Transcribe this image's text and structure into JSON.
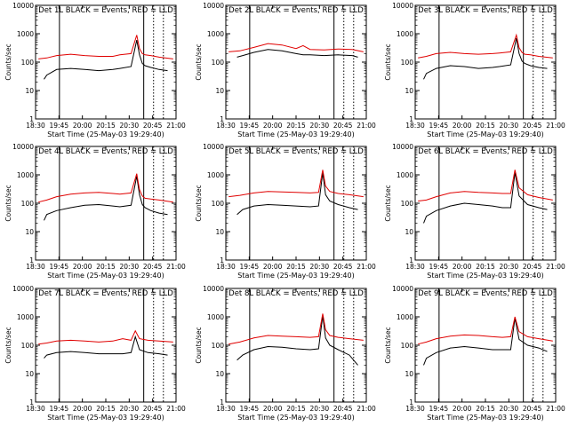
{
  "colors": {
    "events": "#000000",
    "lld": "#e00000",
    "axis": "#000000",
    "background": "#ffffff"
  },
  "common": {
    "x_ticks": [
      "18:30",
      "19:45",
      "20:00",
      "20:15",
      "20:30",
      "20:45",
      "21:00"
    ],
    "y_ticks": [
      "1",
      "10",
      "100",
      "1000",
      "10000"
    ],
    "ylabel": "Counts/sec",
    "xlabel": "Start Time (25-May-03 19:29:40)"
  },
  "chart_data": [
    {
      "type": "line",
      "title": "Det 1L BLACK = Events, RED = LLD",
      "xlabel": "Start Time (25-May-03 19:29:40)",
      "ylabel": "Counts/sec",
      "yscale": "log",
      "ylim": [
        1,
        10000
      ],
      "x_ticks": [
        "18:30",
        "19:45",
        "20:00",
        "20:15",
        "20:30",
        "20:45",
        "21:00"
      ],
      "series": [
        {
          "name": "Events",
          "color": "#000000",
          "x": [
            0.06,
            0.08,
            0.15,
            0.25,
            0.35,
            0.45,
            0.55,
            0.6,
            0.68,
            0.72,
            0.74,
            0.76,
            0.78,
            0.82,
            0.88,
            0.94
          ],
          "y": [
            25,
            35,
            55,
            60,
            55,
            50,
            55,
            60,
            70,
            600,
            180,
            90,
            75,
            65,
            55,
            50
          ]
        },
        {
          "name": "LLD",
          "color": "#e00000",
          "x": [
            0.02,
            0.08,
            0.15,
            0.25,
            0.35,
            0.45,
            0.55,
            0.6,
            0.68,
            0.72,
            0.74,
            0.76,
            0.78,
            0.82,
            0.88,
            0.98
          ],
          "y": [
            130,
            140,
            170,
            190,
            170,
            160,
            160,
            180,
            200,
            900,
            300,
            200,
            180,
            170,
            150,
            130
          ]
        }
      ]
    },
    {
      "type": "line",
      "title": "Det 2L BLACK = Events, RED = LLD",
      "xlabel": "Start Time (25-May-03 19:29:40)",
      "ylabel": "Counts/sec",
      "yscale": "log",
      "ylim": [
        1,
        10000
      ],
      "x_ticks": [
        "18:30",
        "19:45",
        "20:00",
        "20:15",
        "20:30",
        "20:45",
        "21:00"
      ],
      "series": [
        {
          "name": "Events",
          "color": "#000000",
          "x": [
            0.08,
            0.12,
            0.2,
            0.3,
            0.4,
            0.5,
            0.55,
            0.6,
            0.7,
            0.8,
            0.9,
            0.94
          ],
          "y": [
            150,
            170,
            220,
            280,
            250,
            200,
            180,
            180,
            170,
            180,
            170,
            150
          ]
        },
        {
          "name": "LLD",
          "color": "#e00000",
          "x": [
            0.02,
            0.1,
            0.2,
            0.3,
            0.4,
            0.5,
            0.55,
            0.6,
            0.7,
            0.8,
            0.9,
            0.98
          ],
          "y": [
            230,
            250,
            330,
            450,
            400,
            300,
            380,
            280,
            270,
            290,
            280,
            230
          ]
        }
      ]
    },
    {
      "type": "line",
      "title": "Det 3L BLACK = Events, RED = LLD",
      "xlabel": "Start Time (25-May-03 19:29:40)",
      "ylabel": "Counts/sec",
      "yscale": "log",
      "ylim": [
        1,
        10000
      ],
      "x_ticks": [
        "18:30",
        "19:45",
        "20:00",
        "20:15",
        "20:30",
        "20:45",
        "21:00"
      ],
      "series": [
        {
          "name": "Events",
          "color": "#000000",
          "x": [
            0.06,
            0.08,
            0.15,
            0.25,
            0.35,
            0.45,
            0.55,
            0.6,
            0.68,
            0.72,
            0.74,
            0.76,
            0.78,
            0.82,
            0.88,
            0.94
          ],
          "y": [
            25,
            40,
            60,
            75,
            70,
            60,
            65,
            70,
            80,
            700,
            200,
            110,
            90,
            75,
            65,
            60
          ]
        },
        {
          "name": "LLD",
          "color": "#e00000",
          "x": [
            0.02,
            0.08,
            0.15,
            0.25,
            0.35,
            0.45,
            0.55,
            0.6,
            0.68,
            0.72,
            0.74,
            0.76,
            0.78,
            0.82,
            0.88,
            0.98
          ],
          "y": [
            140,
            160,
            200,
            220,
            200,
            190,
            200,
            210,
            230,
            900,
            320,
            220,
            190,
            180,
            160,
            140
          ]
        }
      ]
    },
    {
      "type": "line",
      "title": "Det 4L BLACK = Events, RED = LLD",
      "xlabel": "Start Time (25-May-03 19:29:40)",
      "ylabel": "Counts/sec",
      "yscale": "log",
      "ylim": [
        1,
        10000
      ],
      "x_ticks": [
        "18:30",
        "19:45",
        "20:00",
        "20:15",
        "20:30",
        "20:45",
        "21:00"
      ],
      "series": [
        {
          "name": "Events",
          "color": "#000000",
          "x": [
            0.06,
            0.08,
            0.15,
            0.25,
            0.35,
            0.45,
            0.55,
            0.6,
            0.68,
            0.72,
            0.74,
            0.76,
            0.78,
            0.82,
            0.88,
            0.94
          ],
          "y": [
            25,
            40,
            55,
            70,
            85,
            90,
            80,
            75,
            85,
            900,
            200,
            90,
            70,
            55,
            45,
            40
          ]
        },
        {
          "name": "LLD",
          "color": "#e00000",
          "x": [
            0.02,
            0.08,
            0.15,
            0.25,
            0.35,
            0.45,
            0.55,
            0.6,
            0.68,
            0.72,
            0.74,
            0.76,
            0.78,
            0.82,
            0.88,
            0.98
          ],
          "y": [
            110,
            130,
            170,
            210,
            230,
            240,
            220,
            210,
            230,
            1100,
            300,
            180,
            150,
            140,
            130,
            110
          ]
        }
      ]
    },
    {
      "type": "line",
      "title": "Det 5L BLACK = Events, RED = LLD",
      "xlabel": "Start Time (25-May-03 19:29:40)",
      "ylabel": "Counts/sec",
      "yscale": "log",
      "ylim": [
        1,
        10000
      ],
      "x_ticks": [
        "18:30",
        "19:45",
        "20:00",
        "20:15",
        "20:30",
        "20:45",
        "21:00"
      ],
      "series": [
        {
          "name": "Events",
          "color": "#000000",
          "x": [
            0.08,
            0.12,
            0.2,
            0.3,
            0.4,
            0.5,
            0.6,
            0.66,
            0.69,
            0.71,
            0.74,
            0.8,
            0.88,
            0.94
          ],
          "y": [
            40,
            60,
            80,
            90,
            85,
            80,
            75,
            80,
            1200,
            200,
            120,
            90,
            70,
            60
          ]
        },
        {
          "name": "LLD",
          "color": "#e00000",
          "x": [
            0.02,
            0.1,
            0.2,
            0.3,
            0.4,
            0.5,
            0.6,
            0.66,
            0.69,
            0.71,
            0.74,
            0.8,
            0.88,
            0.98
          ],
          "y": [
            170,
            190,
            230,
            260,
            250,
            240,
            230,
            240,
            1500,
            400,
            260,
            220,
            200,
            170
          ]
        }
      ]
    },
    {
      "type": "line",
      "title": "Det 6L BLACK = Events, RED = LLD",
      "xlabel": "Start Time (25-May-03 19:29:40)",
      "ylabel": "Counts/sec",
      "yscale": "log",
      "ylim": [
        1,
        10000
      ],
      "x_ticks": [
        "18:30",
        "19:45",
        "20:00",
        "20:15",
        "20:30",
        "20:45",
        "21:00"
      ],
      "series": [
        {
          "name": "Events",
          "color": "#000000",
          "x": [
            0.06,
            0.08,
            0.15,
            0.25,
            0.35,
            0.45,
            0.55,
            0.62,
            0.68,
            0.71,
            0.74,
            0.8,
            0.88,
            0.94
          ],
          "y": [
            20,
            35,
            55,
            80,
            100,
            90,
            80,
            70,
            70,
            1200,
            180,
            90,
            70,
            60
          ]
        },
        {
          "name": "LLD",
          "color": "#e00000",
          "x": [
            0.02,
            0.08,
            0.15,
            0.25,
            0.35,
            0.45,
            0.55,
            0.62,
            0.68,
            0.71,
            0.74,
            0.8,
            0.88,
            0.98
          ],
          "y": [
            120,
            130,
            170,
            230,
            260,
            240,
            230,
            220,
            220,
            1500,
            350,
            200,
            160,
            130
          ]
        }
      ]
    },
    {
      "type": "line",
      "title": "Det 7L BLACK = Events, RED = LLD",
      "xlabel": "Start Time (25-May-03 19:29:40)",
      "ylabel": "Counts/sec",
      "yscale": "log",
      "ylim": [
        1,
        10000
      ],
      "x_ticks": [
        "18:30",
        "19:45",
        "20:00",
        "20:15",
        "20:30",
        "20:45",
        "21:00"
      ],
      "series": [
        {
          "name": "Events",
          "color": "#000000",
          "x": [
            0.06,
            0.08,
            0.15,
            0.25,
            0.35,
            0.45,
            0.55,
            0.62,
            0.68,
            0.71,
            0.74,
            0.8,
            0.88,
            0.94
          ],
          "y": [
            35,
            45,
            55,
            60,
            55,
            50,
            50,
            50,
            55,
            200,
            70,
            55,
            50,
            45
          ]
        },
        {
          "name": "LLD",
          "color": "#e00000",
          "x": [
            0.02,
            0.08,
            0.15,
            0.25,
            0.35,
            0.45,
            0.55,
            0.62,
            0.68,
            0.71,
            0.74,
            0.8,
            0.88,
            0.98
          ],
          "y": [
            110,
            120,
            140,
            150,
            140,
            130,
            140,
            170,
            150,
            320,
            170,
            150,
            140,
            130
          ]
        }
      ]
    },
    {
      "type": "line",
      "title": "Det 8L BLACK = Events, RED = LLD",
      "xlabel": "Start Time (25-May-03 19:29:40)",
      "ylabel": "Counts/sec",
      "yscale": "log",
      "ylim": [
        1,
        10000
      ],
      "x_ticks": [
        "18:30",
        "19:45",
        "20:00",
        "20:15",
        "20:30",
        "20:45",
        "21:00"
      ],
      "series": [
        {
          "name": "Events",
          "color": "#000000",
          "x": [
            0.08,
            0.12,
            0.2,
            0.3,
            0.4,
            0.5,
            0.6,
            0.66,
            0.69,
            0.71,
            0.74,
            0.8,
            0.88,
            0.94
          ],
          "y": [
            30,
            45,
            70,
            90,
            85,
            75,
            70,
            75,
            1100,
            180,
            100,
            70,
            45,
            20
          ]
        },
        {
          "name": "LLD",
          "color": "#e00000",
          "x": [
            0.02,
            0.1,
            0.2,
            0.3,
            0.4,
            0.5,
            0.6,
            0.66,
            0.69,
            0.71,
            0.74,
            0.8,
            0.88,
            0.98
          ],
          "y": [
            110,
            130,
            180,
            220,
            210,
            200,
            190,
            200,
            1300,
            350,
            220,
            190,
            170,
            150
          ]
        }
      ]
    },
    {
      "type": "line",
      "title": "Det 9L BLACK = Events, RED = LLD",
      "xlabel": "Start Time (25-May-03 19:29:40)",
      "ylabel": "Counts/sec",
      "yscale": "log",
      "ylim": [
        1,
        10000
      ],
      "x_ticks": [
        "18:30",
        "19:45",
        "20:00",
        "20:15",
        "20:30",
        "20:45",
        "21:00"
      ],
      "series": [
        {
          "name": "Events",
          "color": "#000000",
          "x": [
            0.06,
            0.08,
            0.15,
            0.25,
            0.35,
            0.45,
            0.55,
            0.62,
            0.68,
            0.71,
            0.74,
            0.8,
            0.88,
            0.94
          ],
          "y": [
            20,
            35,
            55,
            80,
            90,
            80,
            70,
            70,
            70,
            900,
            160,
            100,
            80,
            60
          ]
        },
        {
          "name": "LLD",
          "color": "#e00000",
          "x": [
            0.02,
            0.08,
            0.15,
            0.25,
            0.35,
            0.45,
            0.55,
            0.62,
            0.68,
            0.71,
            0.74,
            0.8,
            0.88,
            0.98
          ],
          "y": [
            110,
            130,
            170,
            210,
            230,
            220,
            200,
            190,
            200,
            1000,
            300,
            200,
            170,
            140
          ]
        }
      ]
    }
  ]
}
